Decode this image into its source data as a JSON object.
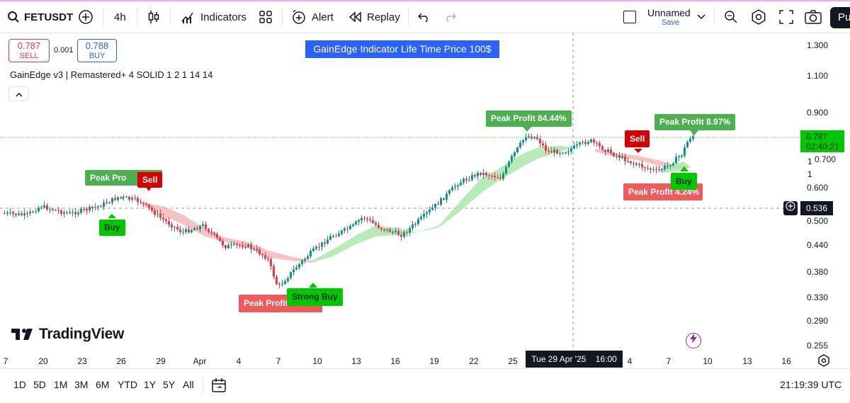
{
  "toolbar": {
    "symbol": "FETUSDT",
    "interval": "4h",
    "indicators_label": "Indicators",
    "alert_label": "Alert",
    "replay_label": "Replay",
    "layout_name": "Unnamed",
    "save_label": "Save",
    "publish_label": "Pu"
  },
  "trade": {
    "sell_price": "0.787",
    "sell_label": "SELL",
    "spread": "0.001",
    "buy_price": "0.788",
    "buy_label": "BUY"
  },
  "banner": "GainEdge Indicator Life Time Price 100$",
  "indicator_legend": "GainEdge v3 | Remastered+ 4 SOLID 1 2 1 14 14",
  "signals": {
    "peak_profit_1": "Peak Profit",
    "sell_1": "Sell",
    "buy_1": "Buy",
    "peak_profit_2": "Peak Profit",
    "strong_buy": "Strong Buy",
    "peak_profit_3": "Peak Profit 84.44%",
    "sell_2": "Sell",
    "peak_profit_4": "Peak Profit 8.97%",
    "buy_2": "Buy",
    "peak_profit_5": "Peak Profit 4.24%"
  },
  "price_axis": {
    "ticks": [
      "1.300",
      "1.100",
      "0.900",
      "0.700",
      "0.600",
      "0.500",
      "0.440",
      "0.380",
      "0.330",
      "0.290",
      "0.255"
    ],
    "current_price": "0.787",
    "countdown": "02:40:21",
    "crosshair_price": "0.536",
    "small_1": "1",
    "small_2": "1"
  },
  "time_axis": {
    "ticks": [
      "7",
      "20",
      "23",
      "26",
      "29",
      "Apr",
      "4",
      "7",
      "10",
      "13",
      "16",
      "19",
      "22",
      "25",
      "4",
      "7",
      "10",
      "13",
      "16"
    ],
    "crosshair_label": "Tue 29 Apr '25",
    "crosshair_time": "16:00"
  },
  "watermark": "TradingView",
  "bottom": {
    "ranges": [
      "1D",
      "5D",
      "1M",
      "3M",
      "6M",
      "YTD",
      "1Y",
      "5Y",
      "All"
    ],
    "clock": "21:19:39 UTC"
  },
  "colors": {
    "up": "#089981",
    "down": "#f23645",
    "green_band": "#a8e6a8",
    "red_band": "#f4b4b4",
    "accent": "#2962ff"
  }
}
